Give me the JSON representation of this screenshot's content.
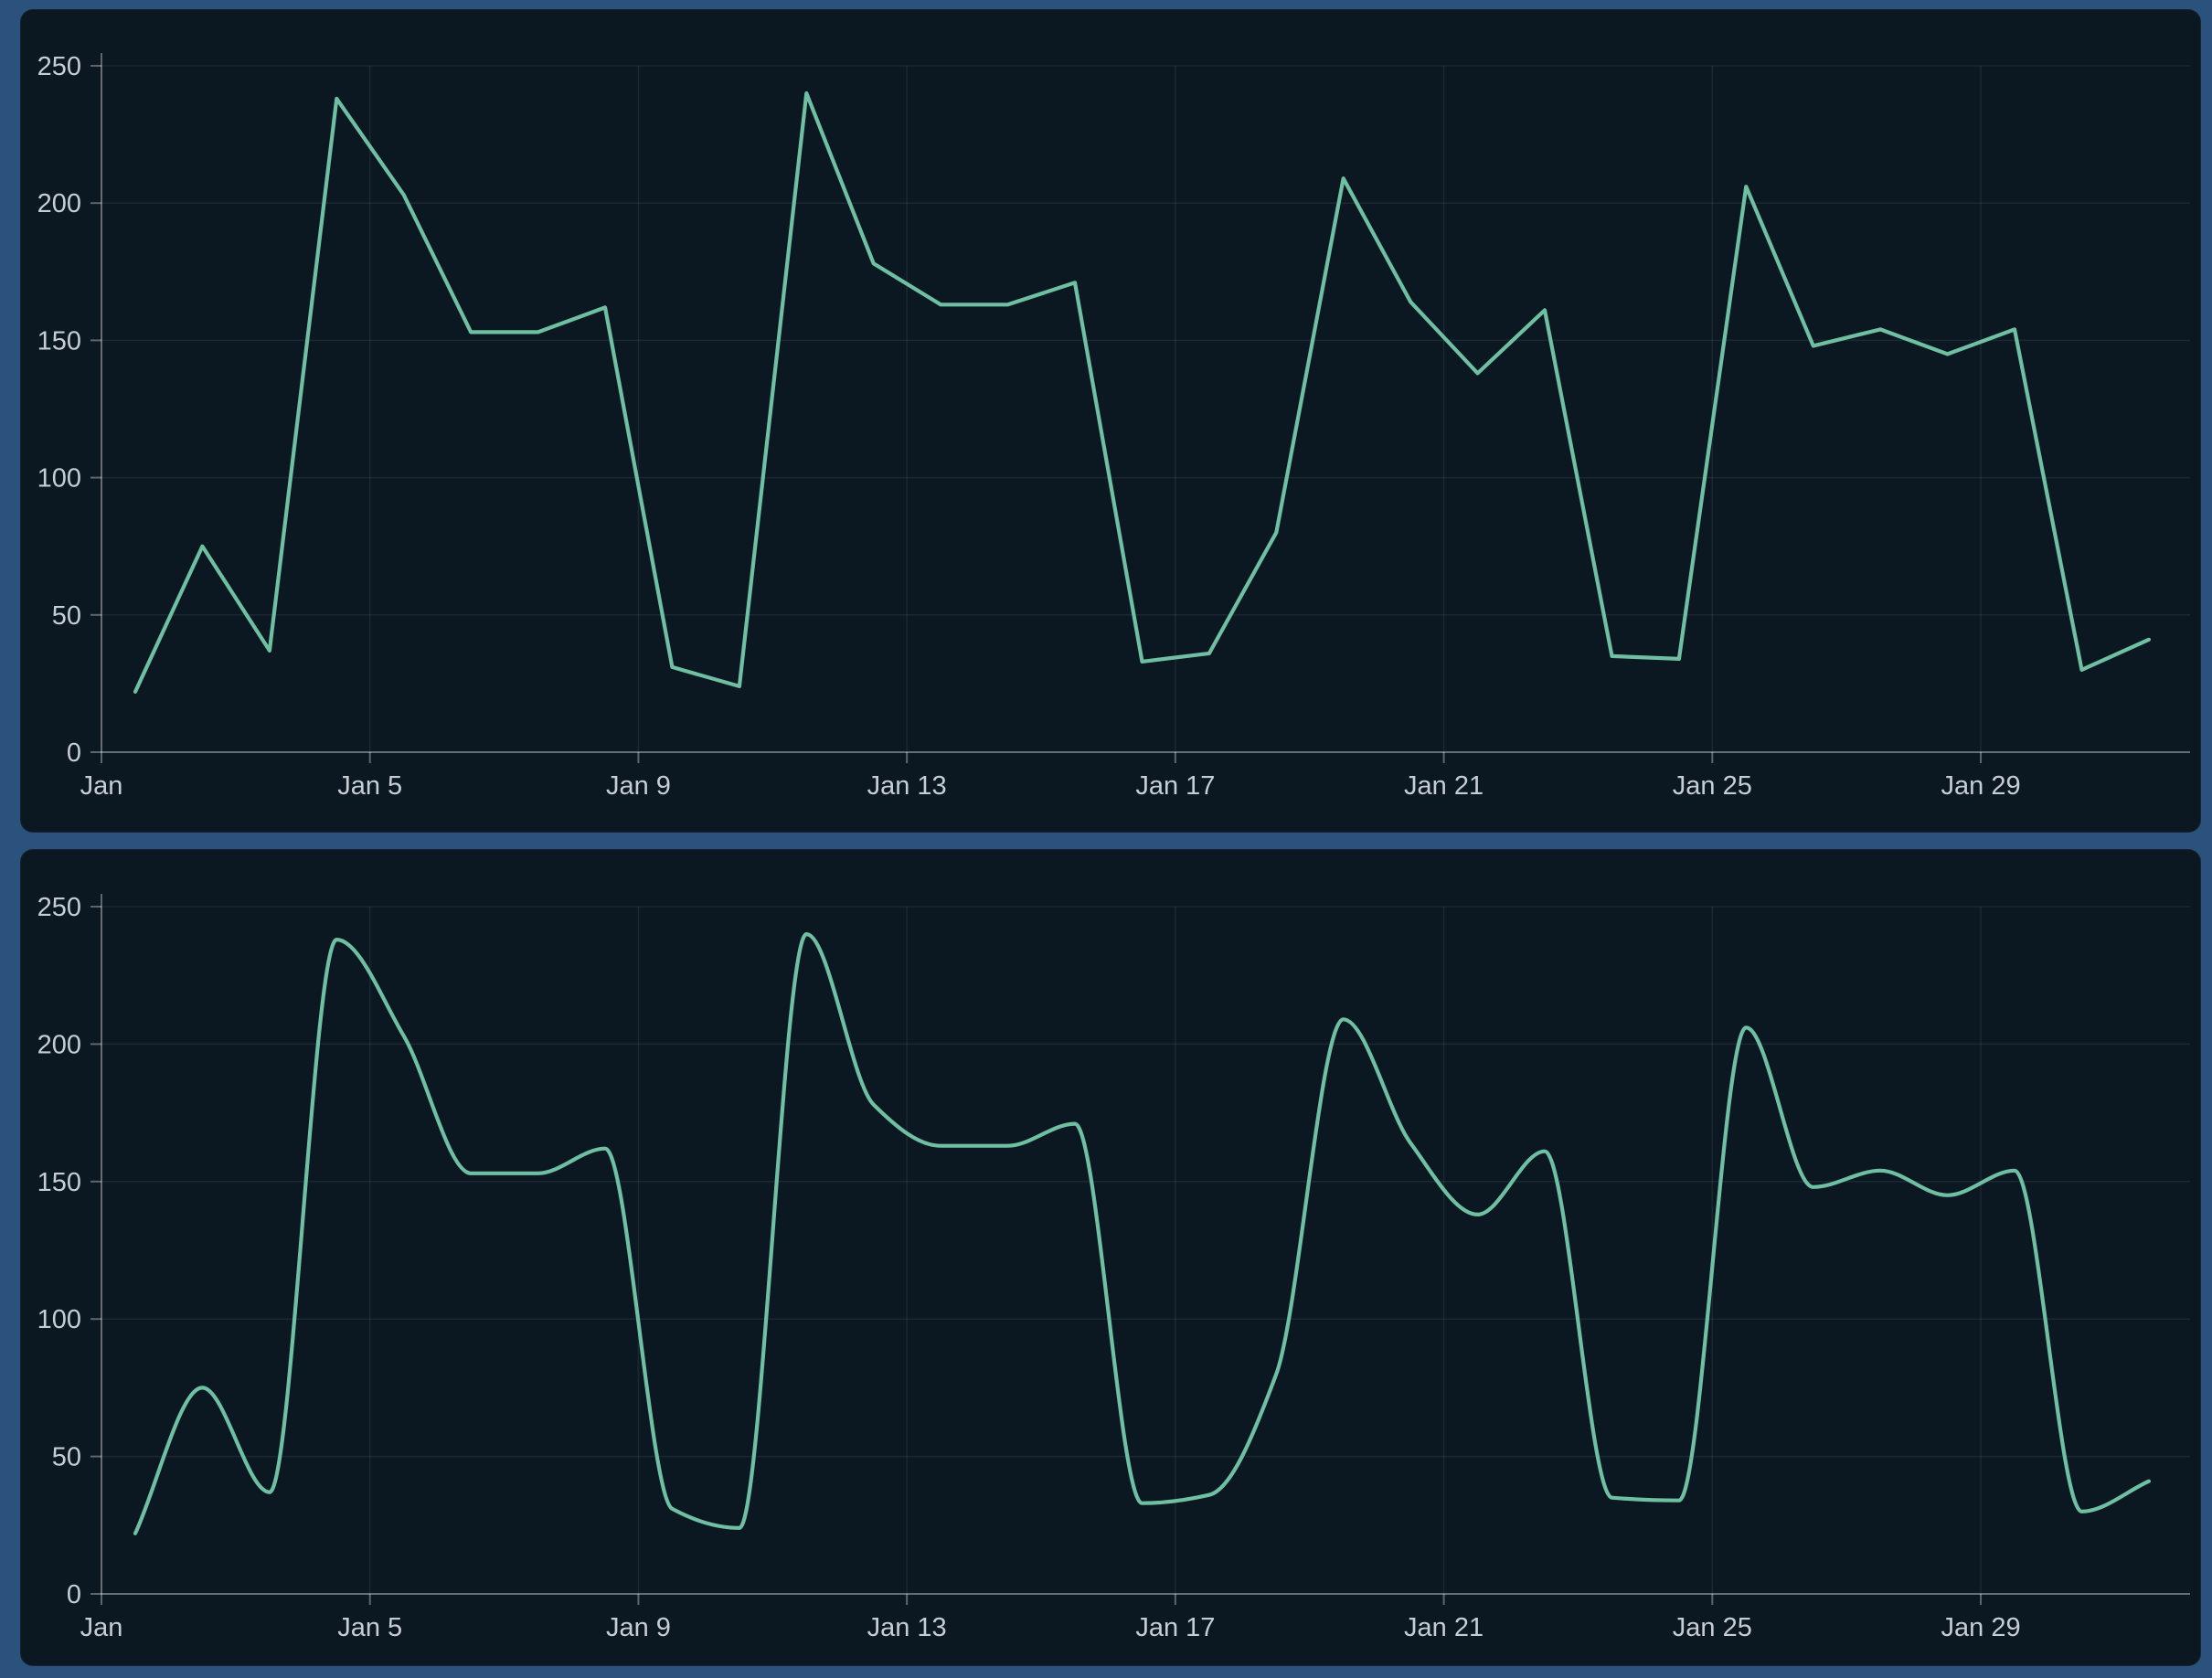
{
  "colors": {
    "line": "#6FBFA2",
    "panel_bg": "#0B1822",
    "frame_bg": "#2B527D",
    "grid": "rgba(255,255,255,0.07)",
    "axis": "rgba(255,255,255,0.34)",
    "tick_text": "#C6CDD4"
  },
  "chart_data": [
    {
      "type": "line",
      "interpolation": "linear",
      "title": "",
      "xlabel": "",
      "ylabel": "",
      "x": [
        1,
        2,
        3,
        4,
        5,
        6,
        7,
        8,
        9,
        10,
        11,
        12,
        13,
        14,
        15,
        16,
        17,
        18,
        19,
        20,
        21,
        22,
        23,
        24,
        25,
        26,
        27,
        28,
        29,
        30,
        31
      ],
      "values": [
        22,
        75,
        37,
        238,
        203,
        153,
        153,
        162,
        31,
        24,
        240,
        178,
        163,
        163,
        171,
        33,
        36,
        80,
        209,
        164,
        138,
        161,
        35,
        34,
        206,
        148,
        154,
        145,
        154,
        30,
        41
      ],
      "xtick_days": [
        1,
        5,
        9,
        13,
        17,
        21,
        25,
        29
      ],
      "xtick_labels": [
        "Jan",
        "Jan 5",
        "Jan 9",
        "Jan 13",
        "Jan 17",
        "Jan 21",
        "Jan 25",
        "Jan 29"
      ],
      "ytick_values": [
        0,
        50,
        100,
        150,
        200,
        250
      ],
      "ytick_labels": [
        "0",
        "50",
        "100",
        "150",
        "200",
        "250"
      ],
      "ylim": [
        0,
        250
      ],
      "grid": true,
      "legend": false
    },
    {
      "type": "line",
      "interpolation": "smooth",
      "title": "",
      "xlabel": "",
      "ylabel": "",
      "x": [
        1,
        2,
        3,
        4,
        5,
        6,
        7,
        8,
        9,
        10,
        11,
        12,
        13,
        14,
        15,
        16,
        17,
        18,
        19,
        20,
        21,
        22,
        23,
        24,
        25,
        26,
        27,
        28,
        29,
        30,
        31
      ],
      "values": [
        22,
        75,
        37,
        238,
        203,
        153,
        153,
        162,
        31,
        24,
        240,
        178,
        163,
        163,
        171,
        33,
        36,
        80,
        209,
        164,
        138,
        161,
        35,
        34,
        206,
        148,
        154,
        145,
        154,
        30,
        41
      ],
      "xtick_days": [
        1,
        5,
        9,
        13,
        17,
        21,
        25,
        29
      ],
      "xtick_labels": [
        "Jan",
        "Jan 5",
        "Jan 9",
        "Jan 13",
        "Jan 17",
        "Jan 21",
        "Jan 25",
        "Jan 29"
      ],
      "ytick_values": [
        0,
        50,
        100,
        150,
        200,
        250
      ],
      "ytick_labels": [
        "0",
        "50",
        "100",
        "150",
        "200",
        "250"
      ],
      "ylim": [
        0,
        250
      ],
      "grid": true,
      "legend": false
    }
  ]
}
